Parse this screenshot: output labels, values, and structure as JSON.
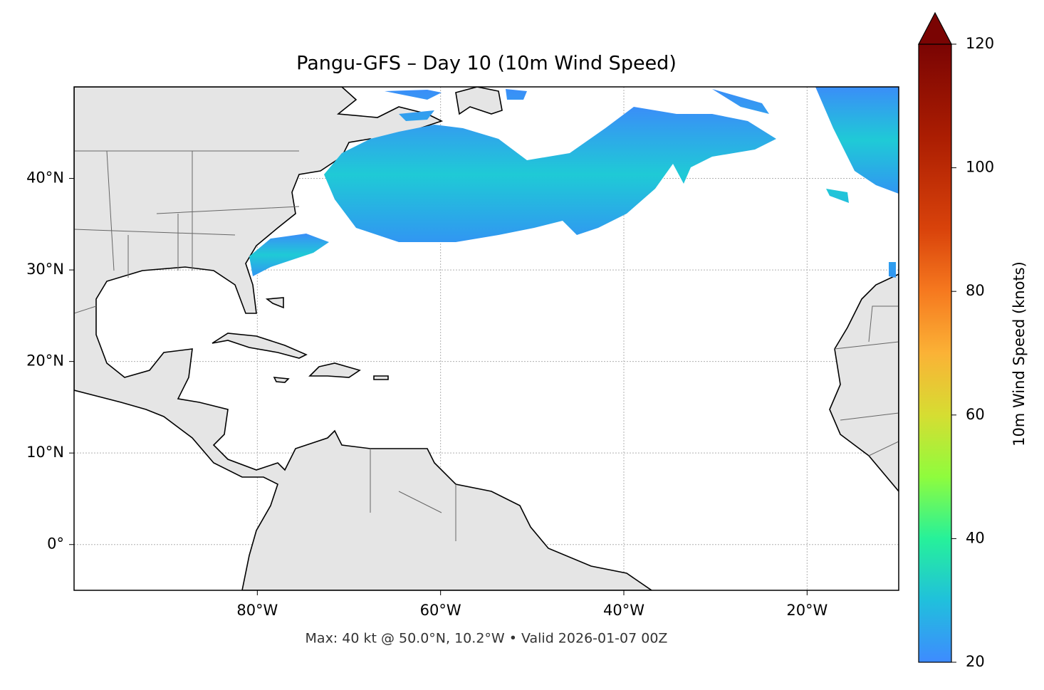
{
  "chart_data": {
    "type": "map",
    "title": "Pangu-GFS – Day 10 (10m Wind Speed)",
    "footer": "Max: 40 kt @ 50.0°N, 10.2°W • Valid 2026-01-07 00Z",
    "xlim": [
      -100,
      -10
    ],
    "ylim": [
      -5,
      50
    ],
    "xticks": [
      {
        "value": -80,
        "label": "80°W"
      },
      {
        "value": -60,
        "label": "60°W"
      },
      {
        "value": -40,
        "label": "40°W"
      },
      {
        "value": -20,
        "label": "20°W"
      }
    ],
    "yticks": [
      {
        "value": 0,
        "label": "0°"
      },
      {
        "value": 10,
        "label": "10°N"
      },
      {
        "value": 20,
        "label": "20°N"
      },
      {
        "value": 30,
        "label": "30°N"
      },
      {
        "value": 40,
        "label": "40°N"
      }
    ],
    "grid": true,
    "colorbar": {
      "label": "10m Wind Speed (knots)",
      "lim": [
        20,
        120
      ],
      "ticks": [
        20,
        40,
        60,
        80,
        100,
        120
      ],
      "extend": "max"
    }
  }
}
